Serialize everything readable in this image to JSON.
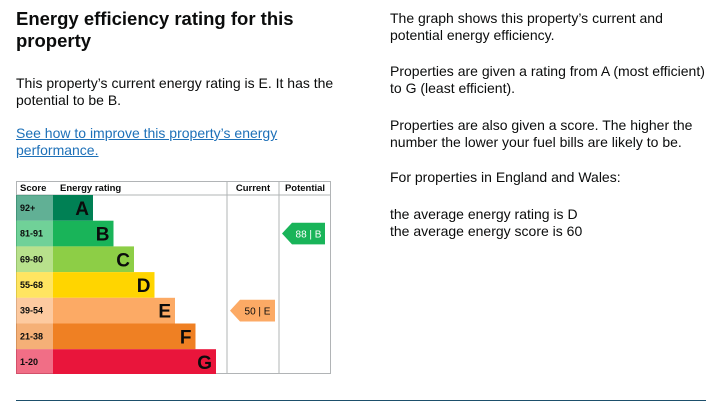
{
  "heading": "Energy efficiency rating for this property",
  "rating_text": "This property’s current energy rating is E. It has the potential to be B.",
  "improve_link": "See how to improve this property’s energy performance.",
  "info": {
    "graph_desc": "The graph shows this property’s current and potential energy efficiency.",
    "rating_desc": "Properties are given a rating from A (most efficient) to G (least efficient).",
    "score_desc": "Properties are also given a score. The higher the number the lower your fuel bills are likely to be.",
    "region_intro": "For properties in England and Wales:",
    "avg_rating": "the average energy rating is D",
    "avg_score": "the average energy score is 60"
  },
  "chart_data": {
    "type": "table",
    "headers": {
      "score": "Score",
      "rating": "Energy rating",
      "current": "Current",
      "potential": "Potential"
    },
    "bands": [
      {
        "letter": "A",
        "range": "92+",
        "color": "#008054"
      },
      {
        "letter": "B",
        "range": "81-91",
        "color": "#19b459"
      },
      {
        "letter": "C",
        "range": "69-80",
        "color": "#8dce46"
      },
      {
        "letter": "D",
        "range": "55-68",
        "color": "#ffd500"
      },
      {
        "letter": "E",
        "range": "39-54",
        "color": "#fcaa65"
      },
      {
        "letter": "F",
        "range": "21-38",
        "color": "#ef8023"
      },
      {
        "letter": "G",
        "range": "1-20",
        "color": "#e9153b"
      }
    ],
    "current": {
      "score": 50,
      "letter": "E",
      "label": "50 | E",
      "color": "#fcaa65"
    },
    "potential": {
      "score": 88,
      "letter": "B",
      "label": "88 | B",
      "color": "#19b459"
    }
  }
}
